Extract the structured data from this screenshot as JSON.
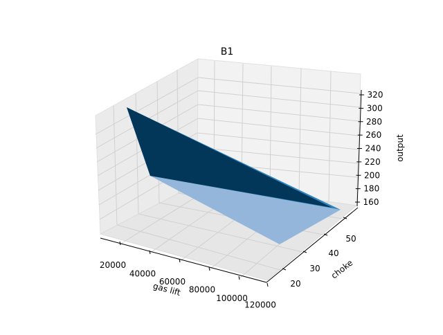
{
  "chart_data": {
    "type": "surface3d",
    "title": "B1",
    "xlabel": "gas lift",
    "ylabel": "choke",
    "zlabel": "output",
    "x_ticks": [
      "20000",
      "40000",
      "60000",
      "80000",
      "100000",
      "120000"
    ],
    "y_ticks": [
      "20",
      "30",
      "40",
      "50"
    ],
    "z_ticks": [
      "160",
      "180",
      "200",
      "220",
      "240",
      "260",
      "280",
      "300",
      "320"
    ],
    "grid": true,
    "colors": {
      "pane": "#f2f2f2",
      "grid": "#d9d9d9",
      "dark_face": "#03375a",
      "mid_face": "#2e86c1",
      "light_face": "#93b6da"
    },
    "surface_vertices": [
      {
        "gas_lift": 20000,
        "choke": 20,
        "output": 300
      },
      {
        "gas_lift": 20000,
        "choke": 20,
        "output": 210
      },
      {
        "gas_lift": 120000,
        "choke": 20,
        "output": 150
      },
      {
        "gas_lift": 120000,
        "choke": 50,
        "output": 160
      }
    ]
  }
}
